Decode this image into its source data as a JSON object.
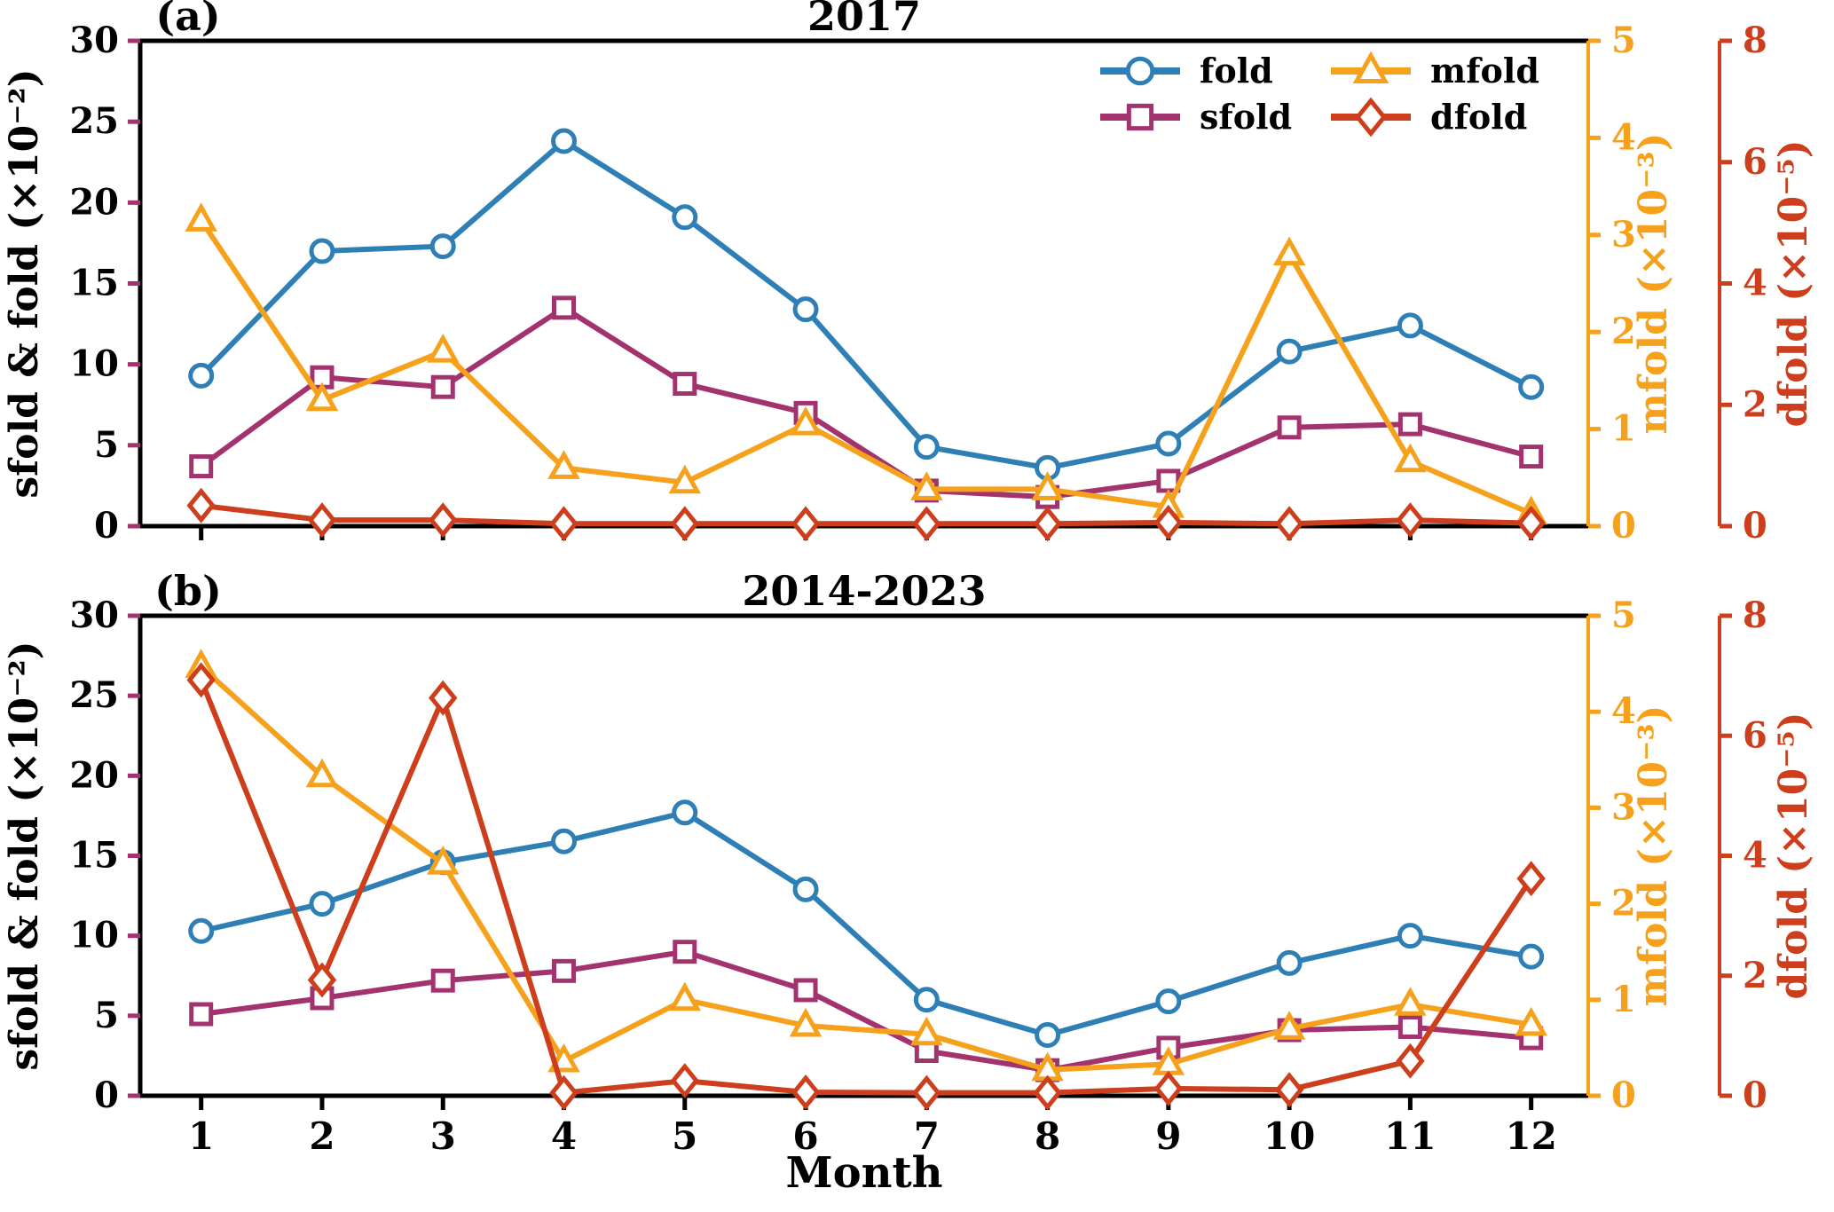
{
  "figure": {
    "xlabel": "Month",
    "left_axis_label": "sfold & fold (×10⁻²)",
    "mfold_axis_label": "mfold (×10⁻³)",
    "dfold_axis_label": "dfold (×10⁻⁵)",
    "month_tick_labels": [
      "1",
      "2",
      "3",
      "4",
      "5",
      "6",
      "7",
      "8",
      "9",
      "10",
      "11",
      "12"
    ],
    "left_ticks": [
      0,
      5,
      10,
      15,
      20,
      25,
      30
    ],
    "mfold_ticks": [
      0,
      1,
      2,
      3,
      4,
      5
    ],
    "dfold_ticks": [
      0,
      2,
      4,
      6,
      8
    ],
    "legend": [
      {
        "label": "fold",
        "series": "fold"
      },
      {
        "label": "sfold",
        "series": "sfold"
      },
      {
        "label": "mfold",
        "series": "mfold"
      },
      {
        "label": "dfold",
        "series": "dfold"
      }
    ],
    "colors": {
      "fold": "#2E7FB5",
      "sfold": "#A3336E",
      "mfold": "#F5A11C",
      "dfold": "#CC3E1C",
      "axis_black": "#000000",
      "left_tick_color": "#A3336E"
    }
  },
  "chart_data": [
    {
      "type": "line",
      "panel": "a",
      "panel_label": "(a)",
      "title": "2017",
      "x": [
        1,
        2,
        3,
        4,
        5,
        6,
        7,
        8,
        9,
        10,
        11,
        12
      ],
      "axes": {
        "left": {
          "label": "sfold & fold (×10⁻²)",
          "range": [
            0,
            30
          ]
        },
        "right_mfold": {
          "label": "mfold (×10⁻³)",
          "range": [
            0,
            5
          ]
        },
        "right_dfold": {
          "label": "dfold (×10⁻⁵)",
          "range": [
            0,
            8
          ]
        }
      },
      "series": [
        {
          "name": "fold",
          "axis": "left",
          "marker": "circle",
          "values": [
            9.3,
            17.0,
            17.3,
            23.8,
            19.1,
            13.4,
            4.9,
            3.6,
            5.1,
            10.8,
            12.4,
            8.6
          ]
        },
        {
          "name": "sfold",
          "axis": "left",
          "marker": "square",
          "values": [
            3.7,
            9.2,
            8.6,
            13.5,
            8.8,
            7.0,
            2.2,
            1.8,
            2.8,
            6.1,
            6.3,
            4.3
          ]
        },
        {
          "name": "mfold",
          "axis": "mfold",
          "marker": "triangle",
          "values": [
            3.15,
            1.3,
            1.8,
            0.6,
            0.45,
            1.05,
            0.38,
            0.38,
            0.2,
            2.8,
            0.67,
            0.13
          ]
        },
        {
          "name": "dfold",
          "axis": "dfold",
          "marker": "diamond",
          "values": [
            0.34,
            0.1,
            0.1,
            0.04,
            0.04,
            0.04,
            0.04,
            0.04,
            0.06,
            0.04,
            0.1,
            0.05
          ]
        }
      ]
    },
    {
      "type": "line",
      "panel": "b",
      "panel_label": "(b)",
      "title": "2014-2023",
      "x": [
        1,
        2,
        3,
        4,
        5,
        6,
        7,
        8,
        9,
        10,
        11,
        12
      ],
      "axes": {
        "left": {
          "label": "sfold & fold (×10⁻²)",
          "range": [
            0,
            30
          ]
        },
        "right_mfold": {
          "label": "mfold (×10⁻³)",
          "range": [
            0,
            5
          ]
        },
        "right_dfold": {
          "label": "dfold (×10⁻⁵)",
          "range": [
            0,
            8
          ]
        }
      },
      "series": [
        {
          "name": "fold",
          "axis": "left",
          "marker": "circle",
          "values": [
            10.3,
            12.0,
            14.6,
            15.9,
            17.7,
            12.9,
            6.0,
            3.8,
            5.9,
            8.3,
            10.0,
            8.7
          ]
        },
        {
          "name": "sfold",
          "axis": "left",
          "marker": "square",
          "values": [
            5.1,
            6.1,
            7.2,
            7.8,
            9.0,
            6.6,
            2.8,
            1.6,
            3.0,
            4.1,
            4.3,
            3.6
          ]
        },
        {
          "name": "mfold",
          "axis": "mfold",
          "marker": "triangle",
          "values": [
            4.47,
            3.33,
            2.42,
            0.36,
            1.0,
            0.73,
            0.64,
            0.27,
            0.33,
            0.7,
            0.95,
            0.74
          ]
        },
        {
          "name": "dfold",
          "axis": "dfold",
          "marker": "diamond",
          "values": [
            6.93,
            1.93,
            6.63,
            0.05,
            0.25,
            0.06,
            0.05,
            0.05,
            0.12,
            0.1,
            0.58,
            3.62
          ]
        }
      ]
    }
  ]
}
